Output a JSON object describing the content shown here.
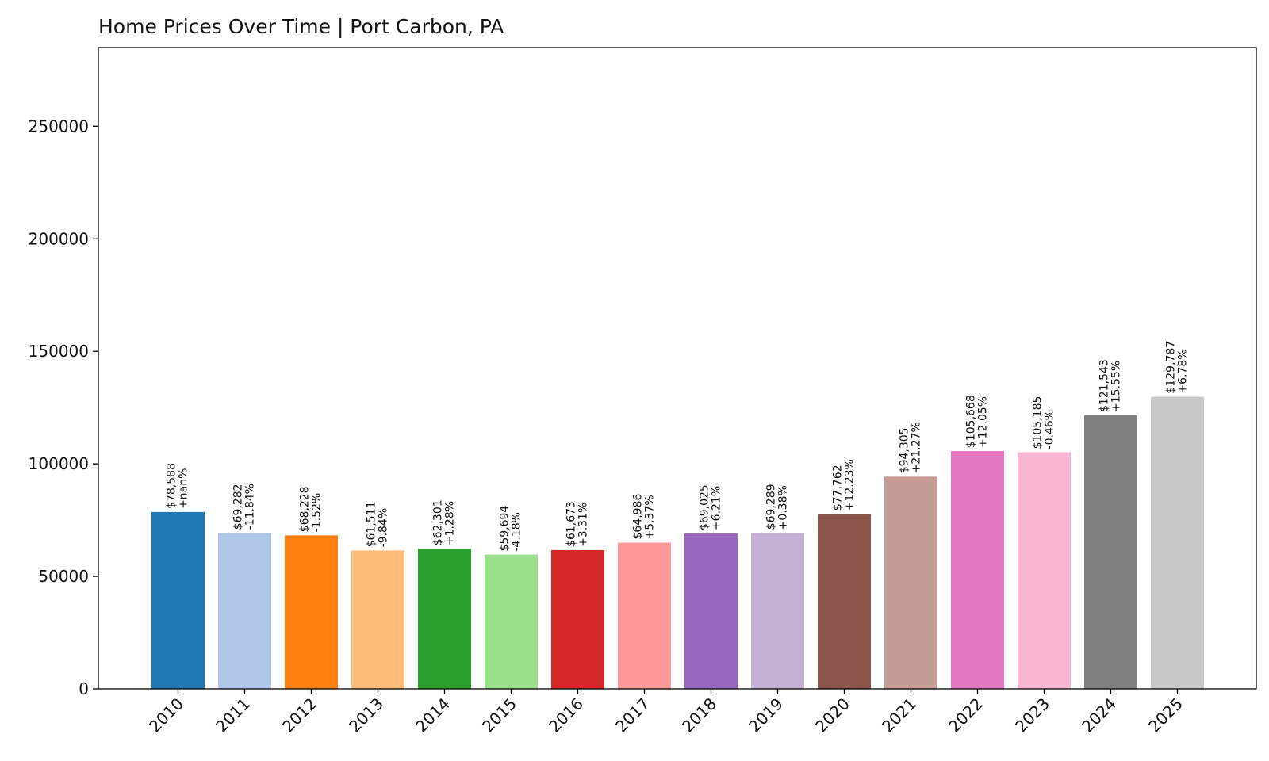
{
  "chart_data": {
    "type": "bar",
    "title": "Home Prices Over Time | Port Carbon, PA",
    "xlabel": "",
    "ylabel": "",
    "ylim": [
      0,
      285000
    ],
    "yticks": [
      0,
      50000,
      100000,
      150000,
      200000,
      250000
    ],
    "ytick_labels": [
      "0",
      "50000",
      "100000",
      "150000",
      "200000",
      "250000"
    ],
    "grid": false,
    "categories": [
      "2010",
      "2011",
      "2012",
      "2013",
      "2014",
      "2015",
      "2016",
      "2017",
      "2018",
      "2019",
      "2020",
      "2021",
      "2022",
      "2023",
      "2024",
      "2025"
    ],
    "values": [
      78588,
      69282,
      68228,
      61511,
      62301,
      59694,
      61673,
      64986,
      69025,
      69289,
      77762,
      94305,
      105668,
      105185,
      121543,
      129787
    ],
    "price_labels": [
      "$78,588",
      "$69,282",
      "$68,228",
      "$61,511",
      "$62,301",
      "$59,694",
      "$61,673",
      "$64,986",
      "$69,025",
      "$69,289",
      "$77,762",
      "$94,305",
      "$105,668",
      "$105,185",
      "$121,543",
      "$129,787"
    ],
    "change_labels": [
      "+nan%",
      "-11.84%",
      "-1.52%",
      "-9.84%",
      "+1.28%",
      "-4.18%",
      "+3.31%",
      "+5.37%",
      "+6.21%",
      "+0.38%",
      "+12.23%",
      "+21.27%",
      "+12.05%",
      "-0.46%",
      "+15.55%",
      "+6.78%"
    ],
    "colors": [
      "#1f77b4",
      "#aec7e8",
      "#ff7f0e",
      "#ffbb78",
      "#2ca02c",
      "#98df8a",
      "#d62728",
      "#ff9896",
      "#9467bd",
      "#c5b0d5",
      "#8c564b",
      "#c49c94",
      "#e377c2",
      "#f7b6d2",
      "#7f7f7f",
      "#c7c7c7"
    ]
  }
}
